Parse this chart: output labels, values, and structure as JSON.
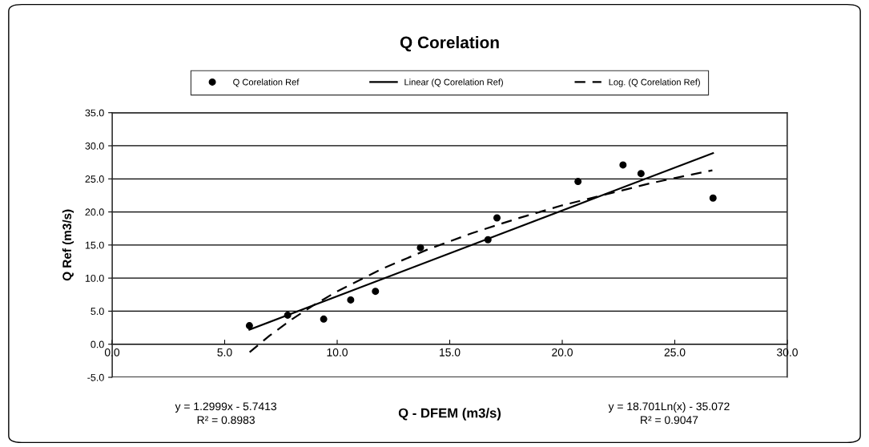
{
  "chart_data": {
    "type": "scatter",
    "title": "Q Corelation",
    "xlabel": "Q - DFEM (m3/s)",
    "ylabel": "Q Ref (m3/s)",
    "xlim": [
      0,
      30
    ],
    "xticks": [
      {
        "value": 0,
        "label": "0.0"
      },
      {
        "value": 5,
        "label": "5.0"
      },
      {
        "value": 10,
        "label": "10.0"
      },
      {
        "value": 15,
        "label": "15.0"
      },
      {
        "value": 20,
        "label": "20.0"
      },
      {
        "value": 25,
        "label": "25.0"
      },
      {
        "value": 30,
        "label": "30.0"
      }
    ],
    "ylim": [
      -5,
      35
    ],
    "yticks": [
      {
        "value": -5,
        "label": "-5.0"
      },
      {
        "value": 0,
        "label": "0.0"
      },
      {
        "value": 5,
        "label": "5.0"
      },
      {
        "value": 10,
        "label": "10.0"
      },
      {
        "value": 15,
        "label": "15.0"
      },
      {
        "value": 20,
        "label": "20.0"
      },
      {
        "value": 25,
        "label": "25.0"
      },
      {
        "value": 30,
        "label": "30.0"
      },
      {
        "value": 35,
        "label": "35.0"
      }
    ],
    "grid": "y",
    "legend": "top",
    "series": [
      {
        "name": "Q Corelation Ref",
        "marker": "circle",
        "color": "#000000",
        "x": [
          6.1,
          7.8,
          9.4,
          10.6,
          11.7,
          13.7,
          16.7,
          17.1,
          20.7,
          22.7,
          23.5,
          26.7
        ],
        "values": [
          2.8,
          4.4,
          3.8,
          6.7,
          8.0,
          14.6,
          15.8,
          19.1,
          24.6,
          27.1,
          25.8,
          22.1
        ]
      },
      {
        "name": "Linear (Q Corelation Ref)",
        "type": "line",
        "line_style": "solid",
        "color": "#000000",
        "x": [
          6.1,
          26.7
        ],
        "values": [
          2.2,
          28.9
        ]
      },
      {
        "name": "Log. (Q Corelation Ref)",
        "type": "line",
        "line_style": "dashed",
        "color": "#000000",
        "x": [
          6.11,
          7,
          8,
          9,
          10,
          12,
          14,
          16,
          18,
          20,
          22,
          24,
          26.67
        ],
        "values": [
          -1.2,
          1.3,
          3.8,
          6.0,
          8.0,
          11.4,
          14.3,
          16.8,
          19.0,
          21.0,
          22.7,
          24.4,
          26.3
        ]
      }
    ],
    "annotations": [
      "y = 1.2999x - 5.7413\nR² = 0.8983",
      "y = 18.701Ln(x) - 35.072\nR² = 0.9047"
    ]
  }
}
